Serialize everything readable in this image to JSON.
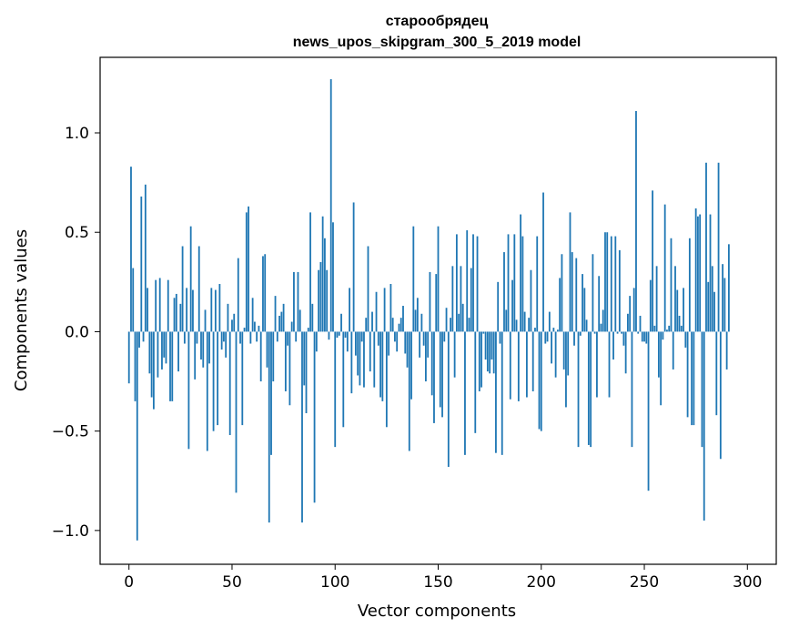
{
  "chart_data": {
    "type": "bar",
    "title_line1": "старообрядец",
    "title_line2": "news_upos_skipgram_300_5_2019 model",
    "xlabel": "Vector components",
    "ylabel": "Components values",
    "xlim": [
      -14,
      314
    ],
    "ylim": [
      -1.17,
      1.38
    ],
    "xticks": [
      0,
      50,
      100,
      150,
      200,
      250,
      300
    ],
    "yticks": [
      -1.0,
      -0.5,
      0.0,
      0.5,
      1.0
    ],
    "ytick_labels": [
      "−1.0",
      "−0.5",
      "0.0",
      "0.5",
      "1.0"
    ],
    "grid": false,
    "bar_color": "#1f77b4",
    "values": [
      -0.26,
      0.83,
      0.32,
      -0.35,
      -1.05,
      -0.08,
      0.68,
      -0.05,
      0.74,
      0.22,
      -0.21,
      -0.33,
      -0.39,
      0.26,
      -0.23,
      0.27,
      -0.19,
      -0.13,
      -0.16,
      0.26,
      -0.35,
      -0.35,
      0.17,
      0.19,
      -0.2,
      0.14,
      0.43,
      -0.06,
      0.22,
      -0.59,
      0.53,
      0.21,
      -0.24,
      -0.06,
      0.43,
      -0.14,
      -0.18,
      0.11,
      -0.6,
      -0.16,
      0.22,
      -0.5,
      0.21,
      -0.47,
      0.24,
      -0.09,
      -0.05,
      -0.13,
      0.14,
      -0.52,
      0.06,
      0.09,
      -0.81,
      0.37,
      -0.06,
      -0.47,
      0.02,
      0.6,
      0.63,
      -0.06,
      0.17,
      0.05,
      -0.05,
      0.03,
      -0.25,
      0.38,
      0.39,
      -0.18,
      -0.96,
      -0.62,
      -0.25,
      0.18,
      -0.05,
      0.08,
      0.1,
      0.14,
      -0.3,
      -0.07,
      -0.37,
      0.05,
      0.3,
      -0.05,
      0.3,
      0.11,
      -0.96,
      -0.27,
      -0.41,
      0.02,
      0.6,
      0.14,
      -0.86,
      -0.1,
      0.31,
      0.35,
      0.58,
      0.47,
      0.31,
      -0.04,
      1.27,
      0.55,
      -0.58,
      -0.03,
      -0.02,
      0.09,
      -0.48,
      -0.03,
      -0.1,
      0.22,
      -0.31,
      0.65,
      -0.12,
      -0.22,
      -0.27,
      -0.05,
      -0.28,
      0.07,
      0.43,
      -0.2,
      0.1,
      -0.28,
      0.2,
      -0.07,
      -0.33,
      -0.35,
      0.22,
      -0.48,
      -0.12,
      0.24,
      0.07,
      -0.05,
      -0.1,
      0.04,
      0.07,
      0.13,
      -0.11,
      -0.18,
      -0.6,
      -0.34,
      0.53,
      0.11,
      0.17,
      -0.13,
      0.09,
      -0.07,
      -0.25,
      -0.13,
      0.3,
      -0.32,
      -0.46,
      0.29,
      0.53,
      -0.38,
      -0.43,
      -0.05,
      0.12,
      -0.68,
      0.07,
      0.33,
      -0.23,
      0.49,
      0.09,
      0.33,
      0.14,
      -0.62,
      0.51,
      0.07,
      0.32,
      0.49,
      -0.51,
      0.48,
      -0.3,
      -0.28,
      -0.01,
      -0.14,
      -0.2,
      -0.21,
      -0.14,
      -0.21,
      -0.61,
      0.25,
      -0.06,
      -0.62,
      0.4,
      0.11,
      0.49,
      -0.34,
      0.26,
      0.49,
      0.06,
      -0.35,
      0.59,
      0.48,
      0.1,
      -0.33,
      0.07,
      0.31,
      -0.3,
      0.02,
      0.48,
      -0.49,
      -0.5,
      0.7,
      -0.06,
      -0.05,
      0.1,
      -0.16,
      0.02,
      -0.23,
      0.01,
      0.27,
      0.39,
      -0.19,
      -0.38,
      -0.22,
      0.6,
      0.4,
      -0.07,
      0.37,
      -0.58,
      -0.02,
      0.29,
      0.22,
      0.06,
      -0.57,
      -0.58,
      0.39,
      -0.01,
      -0.33,
      0.28,
      0.04,
      0.11,
      0.5,
      0.5,
      -0.33,
      0.48,
      -0.14,
      0.48,
      -0.01,
      0.41,
      -0.01,
      -0.07,
      -0.21,
      0.09,
      0.18,
      -0.58,
      0.22,
      1.11,
      -0.01,
      0.08,
      -0.05,
      -0.05,
      -0.06,
      -0.8,
      0.26,
      0.71,
      0.03,
      0.33,
      -0.23,
      -0.37,
      -0.04,
      0.64,
      0.01,
      0.03,
      0.47,
      -0.19,
      0.33,
      0.21,
      0.08,
      0.03,
      0.22,
      -0.08,
      -0.43,
      0.47,
      -0.47,
      -0.47,
      0.62,
      0.58,
      0.59,
      -0.58,
      -0.95,
      0.85,
      0.25,
      0.59,
      0.33,
      0.2,
      -0.42,
      0.85,
      -0.64,
      0.34,
      0.27,
      -0.19,
      0.44
    ]
  }
}
